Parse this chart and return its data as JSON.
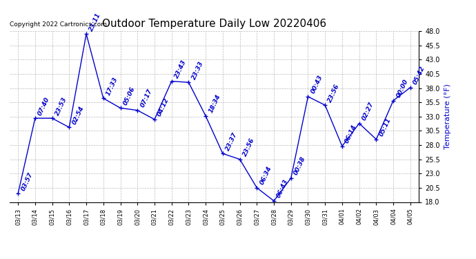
{
  "title": "Outdoor Temperature Daily Low 20220406",
  "ylabel": "Temperature (°F)",
  "copyright": "Copyright 2022 Cartronics.com",
  "background_color": "#ffffff",
  "line_color": "#0000cc",
  "point_marker": "+",
  "grid_color": "#bbbbbb",
  "x_labels": [
    "03/13",
    "03/14",
    "03/15",
    "03/16",
    "03/17",
    "03/18",
    "03/19",
    "03/20",
    "03/21",
    "03/22",
    "03/23",
    "03/24",
    "03/25",
    "03/26",
    "03/27",
    "03/28",
    "03/29",
    "03/30",
    "03/31",
    "04/01",
    "04/02",
    "04/03",
    "04/04",
    "04/05"
  ],
  "y_values": [
    19.5,
    32.7,
    32.7,
    31.1,
    47.5,
    36.2,
    34.5,
    34.1,
    32.5,
    39.2,
    39.0,
    33.1,
    26.5,
    25.5,
    20.5,
    18.2,
    22.2,
    36.5,
    35.0,
    27.8,
    31.8,
    29.0,
    35.8,
    38.1
  ],
  "point_labels": [
    "03:57",
    "07:40",
    "23:53",
    "02:54",
    "23:11",
    "17:33",
    "05:06",
    "07:17",
    "04:12",
    "23:43",
    "23:33",
    "18:34",
    "23:37",
    "23:56",
    "06:34",
    "06:43",
    "00:38",
    "00:43",
    "23:56",
    "06:14",
    "02:27",
    "05:11",
    "00:00",
    "05:42"
  ],
  "ylim_min": 18.0,
  "ylim_max": 48.0,
  "yticks": [
    18.0,
    20.5,
    23.0,
    25.5,
    28.0,
    30.5,
    33.0,
    35.5,
    38.0,
    40.5,
    43.0,
    45.5,
    48.0
  ],
  "title_fontsize": 11,
  "label_fontsize": 6.5,
  "ylabel_fontsize": 8,
  "copyright_fontsize": 6.5,
  "xtick_fontsize": 6,
  "ytick_fontsize": 7
}
